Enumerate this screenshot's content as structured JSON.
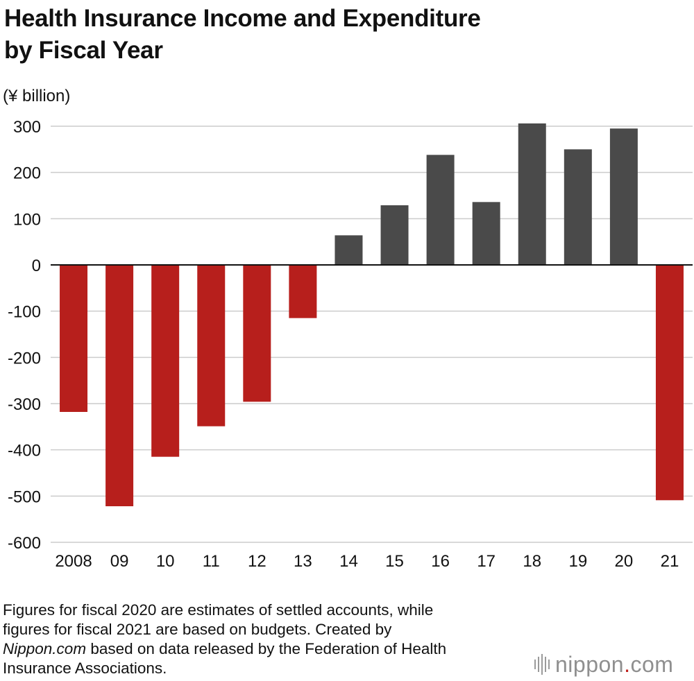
{
  "title_line1": "Health Insurance Income and Expenditure",
  "title_line2": "by Fiscal Year",
  "chart_data": {
    "type": "bar",
    "title": "Health Insurance Income and Expenditure by Fiscal Year",
    "ylabel": "(¥ billion)",
    "xlabel": "",
    "categories": [
      "2008",
      "09",
      "10",
      "11",
      "12",
      "13",
      "14",
      "15",
      "16",
      "17",
      "18",
      "19",
      "20",
      "21"
    ],
    "values": [
      -318,
      -522,
      -415,
      -349,
      -296,
      -115,
      64,
      129,
      238,
      136,
      306,
      250,
      295,
      -509
    ],
    "ylim": [
      -600,
      300
    ],
    "yticks": [
      300,
      200,
      100,
      0,
      -100,
      -200,
      -300,
      -400,
      -500,
      -600
    ],
    "ytick_labels": [
      "300",
      "200",
      "100",
      "0",
      "-100",
      "-200",
      "-300",
      "-400",
      "-500",
      "-600"
    ],
    "grid": true,
    "colors": {
      "positive": "#4a4a4a",
      "negative": "#b71f1c",
      "grid": "#cccccc",
      "zero_line": "#111111"
    }
  },
  "footnote": {
    "line1": "Figures for fiscal 2020 are estimates of settled accounts, while",
    "line2": "figures for fiscal 2021 are based on budgets. Created by",
    "source_name": "Nippon.com",
    "line3_rest": " based on data released by the Federation of Health",
    "line4": "Insurance Associations."
  },
  "logo": {
    "name": "nippon",
    "dot": ".",
    "suffix": "com",
    "icon": "sound-bars-icon"
  }
}
